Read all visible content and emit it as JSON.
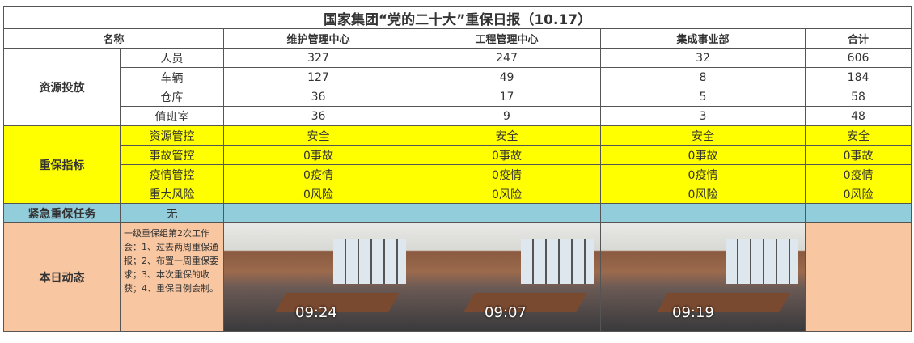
{
  "title": "国家集团“党的二十大”重保日报（10.17）",
  "headers": [
    "名称",
    "维护管理中心",
    "工程管理中心",
    "集成事业部",
    "合计"
  ],
  "sections": {
    "resources": {
      "label": "资源投放",
      "rows": [
        {
          "name": "人员",
          "values": [
            "327",
            "247",
            "32",
            "606"
          ]
        },
        {
          "name": "车辆",
          "values": [
            "127",
            "49",
            "8",
            "184"
          ]
        },
        {
          "name": "仓库",
          "values": [
            "36",
            "17",
            "5",
            "58"
          ]
        },
        {
          "name": "值班室",
          "values": [
            "36",
            "9",
            "3",
            "48"
          ]
        }
      ]
    },
    "indicators": {
      "label": "重保指标",
      "color": "#ffff00",
      "rows": [
        {
          "name": "资源管控",
          "values": [
            "安全",
            "安全",
            "安全",
            "安全"
          ]
        },
        {
          "name": "事故管控",
          "values": [
            "0事故",
            "0事故",
            "0事故",
            "0事故"
          ]
        },
        {
          "name": "疫情管控",
          "values": [
            "0疫情",
            "0疫情",
            "0疫情",
            "0疫情"
          ]
        },
        {
          "name": "重大风险",
          "values": [
            "0风险",
            "0风险",
            "0风险",
            "0风险"
          ]
        }
      ]
    },
    "urgent": {
      "label": "紧急重保任务",
      "value": "无",
      "color": "#92cddc"
    },
    "daily": {
      "label": "本日动态",
      "color": "#f8c6a0",
      "text": "一级重保组第2次工作会：1、过去两周重保通报；2、布置一周重保要求；3、本次重保的收获；4、重保日例会制。",
      "photos": [
        {
          "timestamp": "09:24"
        },
        {
          "timestamp": "09:07"
        },
        {
          "timestamp": "09:19"
        }
      ]
    }
  }
}
